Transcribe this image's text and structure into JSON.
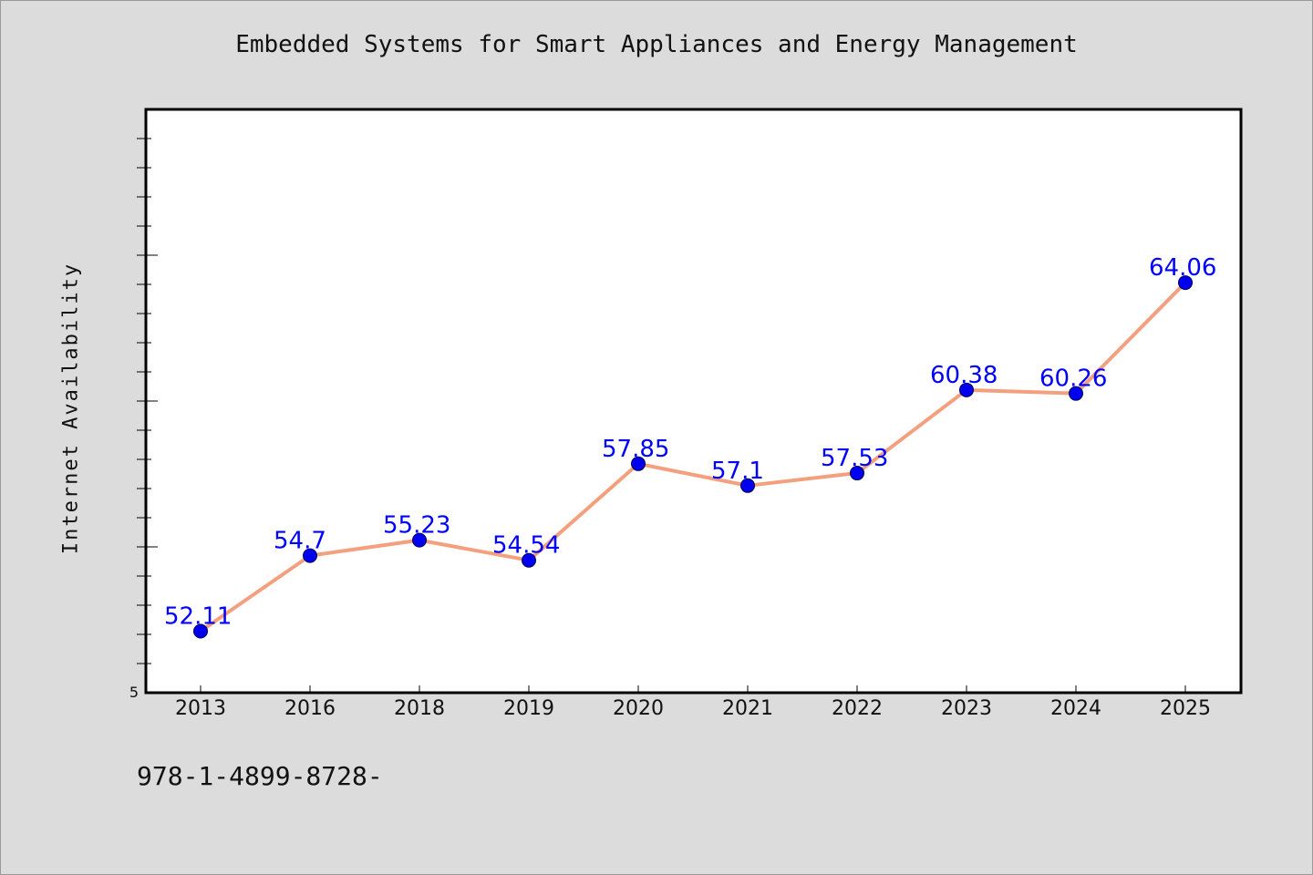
{
  "chart_data": {
    "type": "line",
    "title": "Embedded Systems for Smart Appliances and Energy Management",
    "xlabel": "",
    "ylabel": "Internet Availability",
    "categories": [
      "2013",
      "2016",
      "2018",
      "2019",
      "2020",
      "2021",
      "2022",
      "2023",
      "2024",
      "2025"
    ],
    "series": [
      {
        "values": [
          52.11,
          54.7,
          55.23,
          54.54,
          57.85,
          57.1,
          57.53,
          60.38,
          60.26,
          64.06
        ],
        "labels": [
          "52.11",
          "54.7",
          "55.23",
          "54.54",
          "57.85",
          "57.1",
          "57.53",
          "60.38",
          "60.26",
          "64.06"
        ]
      }
    ],
    "ylim": [
      50,
      70
    ],
    "y_tick_label": "5",
    "grid": false,
    "legend": "none",
    "colors": {
      "line": "#f4a07e",
      "marker": "#0000ee",
      "data_label": "#0000ff",
      "plot_bg": "#ffffff",
      "figure_bg": "#dcdcdc"
    }
  },
  "footer": {
    "code": "978-1-4899-8728-"
  }
}
